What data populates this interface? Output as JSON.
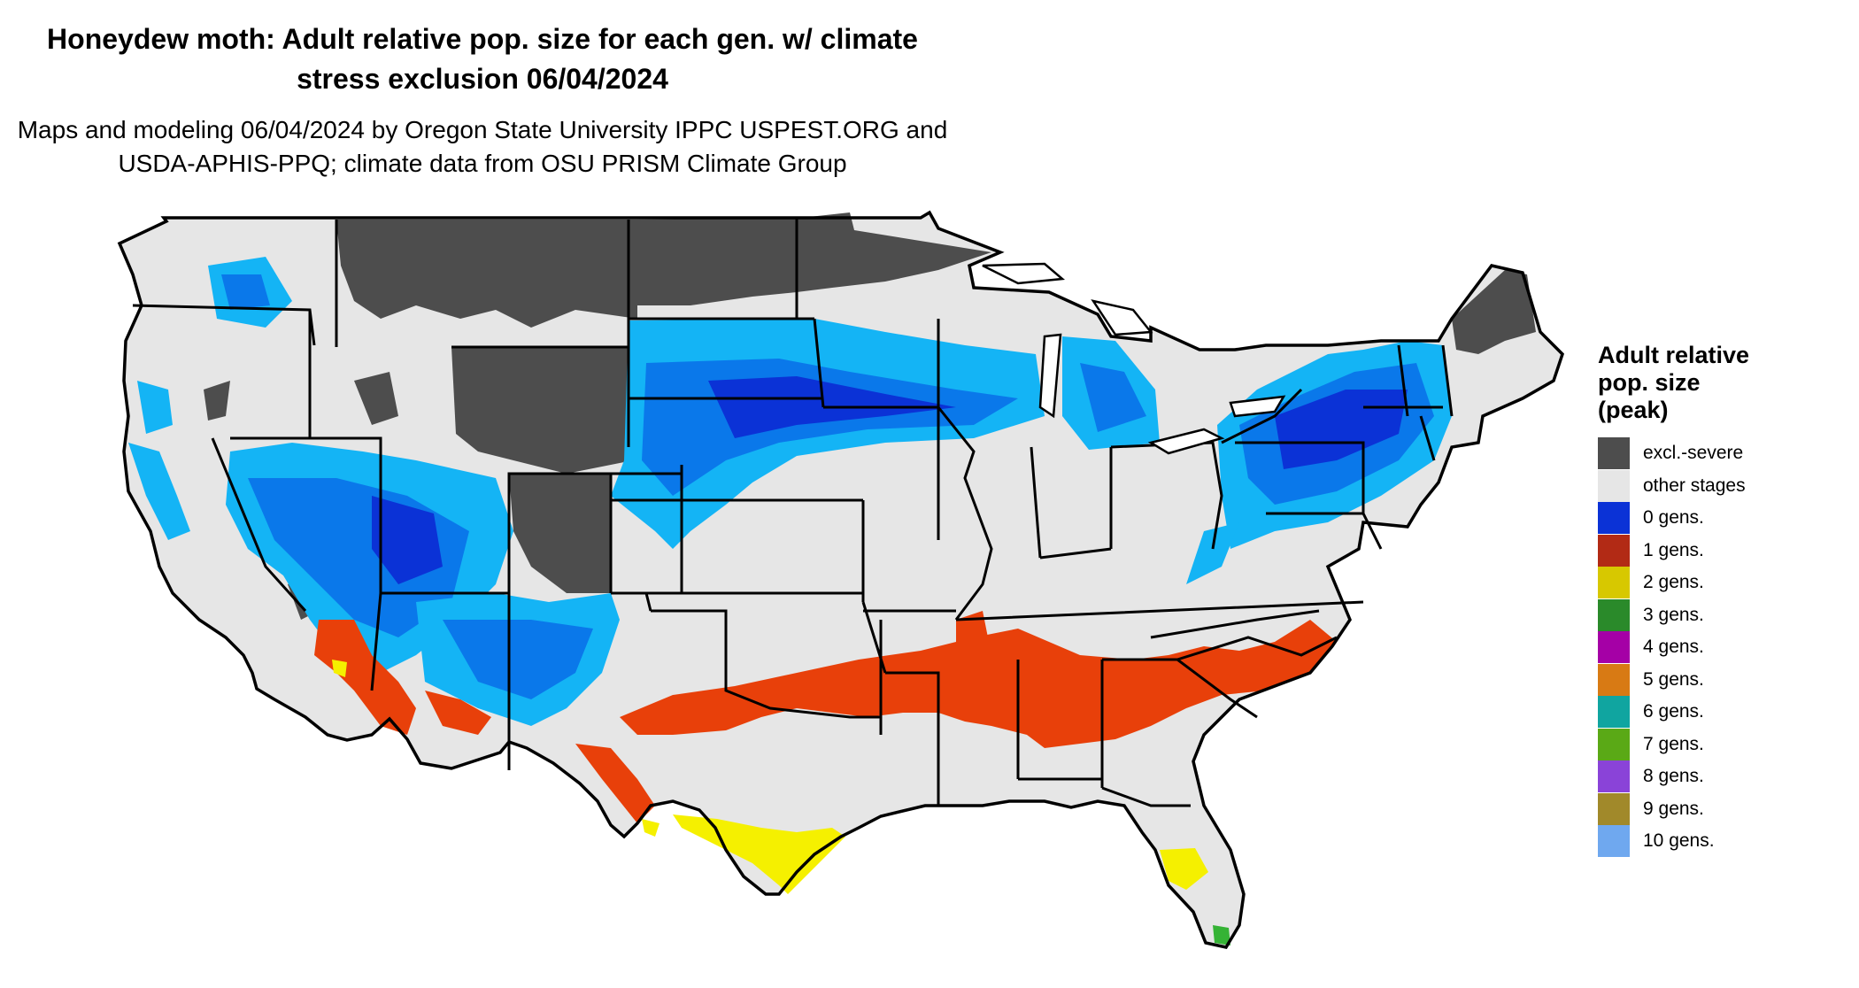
{
  "title": {
    "line1": "Honeydew moth: Adult relative pop. size for each gen. w/ climate",
    "line2": "stress exclusion 06/04/2024"
  },
  "subtitle": {
    "line1": "Maps and modeling 06/04/2024 by Oregon State University IPPC USPEST.ORG and",
    "line2": "USDA-APHIS-PPQ; climate data from OSU PRISM Climate Group"
  },
  "legend": {
    "title_line1": "Adult relative",
    "title_line2": "pop. size",
    "title_line3": "(peak)",
    "items": [
      {
        "label": "excl.-severe",
        "color": "#4d4d4d"
      },
      {
        "label": "other stages",
        "color": "#e6e6e6"
      },
      {
        "label": "0 gens.",
        "color": "#0b32d6"
      },
      {
        "label": "1 gens.",
        "color": "#b22a15"
      },
      {
        "label": "2 gens.",
        "color": "#d7c800"
      },
      {
        "label": "3 gens.",
        "color": "#2a8a2a"
      },
      {
        "label": "4 gens.",
        "color": "#a500a6"
      },
      {
        "label": "5 gens.",
        "color": "#d87a14"
      },
      {
        "label": "6 gens.",
        "color": "#10a5a0"
      },
      {
        "label": "7 gens.",
        "color": "#5aa916"
      },
      {
        "label": "8 gens.",
        "color": "#8a43d8"
      },
      {
        "label": "9 gens.",
        "color": "#a1892a"
      },
      {
        "label": "10 gens.",
        "color": "#6fa8ef"
      }
    ]
  },
  "map_colors": {
    "land": "#e6e6e6",
    "border": "#000000",
    "excluded": "#4d4d4d",
    "blue_light": "#14b4f5",
    "blue_mid": "#0a78ea",
    "blue_dark": "#0b32d6",
    "red_orange": "#e8400a",
    "yellow": "#f5f000",
    "green": "#35b335"
  }
}
